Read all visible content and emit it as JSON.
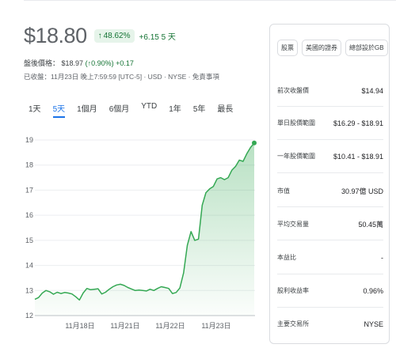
{
  "quote": {
    "price": "$18.80",
    "change_pct": "48.62%",
    "change_abs": "+6.15 5 天",
    "after_hours_label": "盤後價格：",
    "after_hours_price": "$18.97",
    "after_hours_pct": "(↑0.90%)",
    "after_hours_abs": "+0.17",
    "closed_note": "已收盤：11月23日 晚上7:59:59 [UTC-5] · USD · NYSE · 免責事項",
    "arrow_icon": "arrow-up-icon"
  },
  "tabs": [
    {
      "label": "1天",
      "active": false
    },
    {
      "label": "5天",
      "active": true
    },
    {
      "label": "1個月",
      "active": false
    },
    {
      "label": "6個月",
      "active": false
    },
    {
      "label": "YTD",
      "active": false
    },
    {
      "label": "1年",
      "active": false
    },
    {
      "label": "5年",
      "active": false
    },
    {
      "label": "最長",
      "active": false
    }
  ],
  "chart_data": {
    "type": "area",
    "color": "#34a853",
    "ylim": [
      12,
      19
    ],
    "y_ticks": [
      "19",
      "18",
      "17",
      "16",
      "15",
      "14",
      "13",
      "12"
    ],
    "x_ticks": [
      "11月18日",
      "11月21日",
      "11月22日",
      "11月23日"
    ],
    "series": [
      {
        "values": [
          12.65,
          12.72,
          12.9,
          13.0,
          12.95,
          12.85,
          12.93,
          12.88,
          12.92,
          12.9,
          12.86,
          12.75,
          12.62,
          12.9,
          13.08,
          13.03,
          13.05,
          13.07,
          12.86,
          12.93,
          13.05,
          13.15,
          13.22,
          13.25,
          13.2,
          13.12,
          13.06,
          13.0,
          13.02,
          13.0,
          12.98,
          13.05,
          13.0,
          13.08,
          13.15,
          13.12,
          13.08,
          12.88,
          12.92,
          13.1,
          13.7,
          14.8,
          15.35,
          15.0,
          15.05,
          16.4,
          16.9,
          17.05,
          17.15,
          17.45,
          17.5,
          17.42,
          17.5,
          17.8,
          17.95,
          18.2,
          18.15,
          18.45,
          18.7,
          18.88
        ],
        "last_point": 18.88
      }
    ]
  },
  "stats": {
    "chips": [
      "股票",
      "美國的證券",
      "總部設於GB"
    ],
    "rows": [
      {
        "label": "前次收盤價",
        "value": "$14.94"
      },
      {
        "label": "單日股價範圍",
        "value": "$16.29 - $18.91"
      },
      {
        "label": "一年股價範圍",
        "value": "$10.41 - $18.91"
      },
      {
        "label": "市值",
        "value": "30.97億 USD"
      },
      {
        "label": "平均交易量",
        "value": "50.45萬"
      },
      {
        "label": "本益比",
        "value": "-"
      },
      {
        "label": "股利收益率",
        "value": "0.96%"
      },
      {
        "label": "主要交易所",
        "value": "NYSE"
      }
    ]
  }
}
